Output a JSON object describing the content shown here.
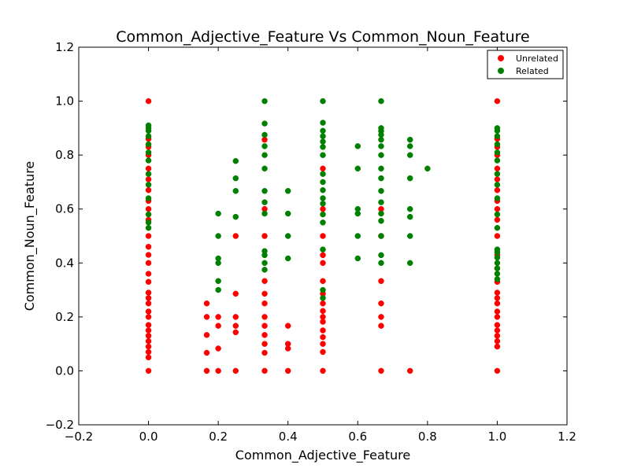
{
  "chart_data": {
    "type": "scatter",
    "title": "Common_Adjective_Feature Vs Common_Noun_Feature",
    "xlabel": "Common_Adjective_Feature",
    "ylabel": "Common_Noun_Feature",
    "xlim": [
      -0.2,
      1.2
    ],
    "ylim": [
      -0.2,
      1.2
    ],
    "xticks": [
      "−0.2",
      "0.0",
      "0.2",
      "0.4",
      "0.6",
      "0.8",
      "1.0",
      "1.2"
    ],
    "yticks": [
      "−0.2",
      "0.0",
      "0.2",
      "0.4",
      "0.6",
      "0.8",
      "1.0",
      "1.2"
    ],
    "legend_position": "top-right",
    "grid": false,
    "series": [
      {
        "name": "Unrelated",
        "color": "#ff0000",
        "points": [
          [
            0,
            0
          ],
          [
            0,
            0.05
          ],
          [
            0,
            0.07
          ],
          [
            0,
            0.09
          ],
          [
            0,
            0.11
          ],
          [
            0,
            0.13
          ],
          [
            0,
            0.15
          ],
          [
            0,
            0.17
          ],
          [
            0,
            0.2
          ],
          [
            0,
            0.22
          ],
          [
            0,
            0.25
          ],
          [
            0,
            0.27
          ],
          [
            0,
            0.29
          ],
          [
            0,
            0.33
          ],
          [
            0,
            0.36
          ],
          [
            0,
            0.4
          ],
          [
            0,
            0.43
          ],
          [
            0,
            0.46
          ],
          [
            0,
            0.5
          ],
          [
            0,
            0.56
          ],
          [
            0,
            0.6
          ],
          [
            0,
            0.63
          ],
          [
            0,
            0.67
          ],
          [
            0,
            0.71
          ],
          [
            0,
            0.75
          ],
          [
            0,
            0.8
          ],
          [
            0,
            0.83
          ],
          [
            0,
            0.86
          ],
          [
            0,
            1.0
          ],
          [
            0.167,
            0
          ],
          [
            0.167,
            0.067
          ],
          [
            0.167,
            0.133
          ],
          [
            0.167,
            0.2
          ],
          [
            0.167,
            0.25
          ],
          [
            0.2,
            0
          ],
          [
            0.2,
            0.083
          ],
          [
            0.2,
            0.167
          ],
          [
            0.2,
            0.2
          ],
          [
            0.25,
            0
          ],
          [
            0.25,
            0.143
          ],
          [
            0.25,
            0.167
          ],
          [
            0.25,
            0.2
          ],
          [
            0.25,
            0.286
          ],
          [
            0.25,
            0.5
          ],
          [
            0.333,
            0
          ],
          [
            0.333,
            0.067
          ],
          [
            0.333,
            0.1
          ],
          [
            0.333,
            0.133
          ],
          [
            0.333,
            0.167
          ],
          [
            0.333,
            0.2
          ],
          [
            0.333,
            0.25
          ],
          [
            0.333,
            0.286
          ],
          [
            0.333,
            0.333
          ],
          [
            0.333,
            0.5
          ],
          [
            0.333,
            0.6
          ],
          [
            0.333,
            0.857
          ],
          [
            0.4,
            0
          ],
          [
            0.4,
            0.083
          ],
          [
            0.4,
            0.1
          ],
          [
            0.4,
            0.167
          ],
          [
            0.5,
            0
          ],
          [
            0.5,
            0.07
          ],
          [
            0.5,
            0.1
          ],
          [
            0.5,
            0.125
          ],
          [
            0.5,
            0.15
          ],
          [
            0.5,
            0.182
          ],
          [
            0.5,
            0.2
          ],
          [
            0.5,
            0.222
          ],
          [
            0.5,
            0.25
          ],
          [
            0.5,
            0.286
          ],
          [
            0.5,
            0.333
          ],
          [
            0.5,
            0.4
          ],
          [
            0.5,
            0.429
          ],
          [
            0.5,
            0.5
          ],
          [
            0.5,
            0.6
          ],
          [
            0.5,
            0.75
          ],
          [
            0.667,
            0
          ],
          [
            0.667,
            0.167
          ],
          [
            0.667,
            0.2
          ],
          [
            0.667,
            0.25
          ],
          [
            0.667,
            0.333
          ],
          [
            0.667,
            0.5
          ],
          [
            0.667,
            0.6
          ],
          [
            0.75,
            0
          ],
          [
            1.0,
            0
          ],
          [
            1.0,
            0.09
          ],
          [
            1.0,
            0.11
          ],
          [
            1.0,
            0.13
          ],
          [
            1.0,
            0.15
          ],
          [
            1.0,
            0.17
          ],
          [
            1.0,
            0.2
          ],
          [
            1.0,
            0.22
          ],
          [
            1.0,
            0.25
          ],
          [
            1.0,
            0.27
          ],
          [
            1.0,
            0.29
          ],
          [
            1.0,
            0.33
          ],
          [
            1.0,
            0.38
          ],
          [
            1.0,
            0.43
          ],
          [
            1.0,
            0.5
          ],
          [
            1.0,
            0.56
          ],
          [
            1.0,
            0.6
          ],
          [
            1.0,
            0.63
          ],
          [
            1.0,
            0.67
          ],
          [
            1.0,
            0.71
          ],
          [
            1.0,
            0.75
          ],
          [
            1.0,
            0.8
          ],
          [
            1.0,
            0.83
          ],
          [
            1.0,
            0.86
          ],
          [
            1.0,
            1.0
          ]
        ]
      },
      {
        "name": "Related",
        "color": "#008000",
        "points": [
          [
            0,
            0.53
          ],
          [
            0,
            0.55
          ],
          [
            0,
            0.58
          ],
          [
            0,
            0.64
          ],
          [
            0,
            0.69
          ],
          [
            0,
            0.73
          ],
          [
            0,
            0.78
          ],
          [
            0,
            0.81
          ],
          [
            0,
            0.84
          ],
          [
            0,
            0.87
          ],
          [
            0,
            0.89
          ],
          [
            0,
            0.9
          ],
          [
            0,
            0.91
          ],
          [
            0.2,
            0.3
          ],
          [
            0.2,
            0.333
          ],
          [
            0.2,
            0.4
          ],
          [
            0.2,
            0.417
          ],
          [
            0.2,
            0.5
          ],
          [
            0.2,
            0.583
          ],
          [
            0.25,
            0.571
          ],
          [
            0.25,
            0.667
          ],
          [
            0.25,
            0.714
          ],
          [
            0.25,
            0.778
          ],
          [
            0.333,
            0.375
          ],
          [
            0.333,
            0.4
          ],
          [
            0.333,
            0.429
          ],
          [
            0.333,
            0.444
          ],
          [
            0.333,
            0.583
          ],
          [
            0.333,
            0.625
          ],
          [
            0.333,
            0.667
          ],
          [
            0.333,
            0.75
          ],
          [
            0.333,
            0.8
          ],
          [
            0.333,
            0.833
          ],
          [
            0.333,
            0.875
          ],
          [
            0.333,
            0.917
          ],
          [
            0.333,
            1.0
          ],
          [
            0.4,
            0.417
          ],
          [
            0.4,
            0.5
          ],
          [
            0.4,
            0.583
          ],
          [
            0.4,
            0.667
          ],
          [
            0.5,
            0.27
          ],
          [
            0.5,
            0.3
          ],
          [
            0.5,
            0.45
          ],
          [
            0.5,
            0.55
          ],
          [
            0.5,
            0.58
          ],
          [
            0.5,
            0.62
          ],
          [
            0.5,
            0.64
          ],
          [
            0.5,
            0.67
          ],
          [
            0.5,
            0.7
          ],
          [
            0.5,
            0.73
          ],
          [
            0.5,
            0.8
          ],
          [
            0.5,
            0.83
          ],
          [
            0.5,
            0.85
          ],
          [
            0.5,
            0.87
          ],
          [
            0.5,
            0.89
          ],
          [
            0.5,
            0.92
          ],
          [
            0.5,
            1.0
          ],
          [
            0.6,
            0.417
          ],
          [
            0.6,
            0.5
          ],
          [
            0.6,
            0.583
          ],
          [
            0.6,
            0.6
          ],
          [
            0.6,
            0.75
          ],
          [
            0.6,
            0.833
          ],
          [
            0.667,
            0.4
          ],
          [
            0.667,
            0.429
          ],
          [
            0.667,
            0.5
          ],
          [
            0.667,
            0.556
          ],
          [
            0.667,
            0.583
          ],
          [
            0.667,
            0.625
          ],
          [
            0.667,
            0.667
          ],
          [
            0.667,
            0.714
          ],
          [
            0.667,
            0.75
          ],
          [
            0.667,
            0.8
          ],
          [
            0.667,
            0.833
          ],
          [
            0.667,
            0.857
          ],
          [
            0.667,
            0.875
          ],
          [
            0.667,
            0.889
          ],
          [
            0.667,
            0.9
          ],
          [
            0.667,
            1.0
          ],
          [
            0.75,
            0.4
          ],
          [
            0.75,
            0.5
          ],
          [
            0.75,
            0.571
          ],
          [
            0.75,
            0.6
          ],
          [
            0.75,
            0.714
          ],
          [
            0.75,
            0.8
          ],
          [
            0.75,
            0.833
          ],
          [
            0.75,
            0.857
          ],
          [
            0.8,
            0.75
          ],
          [
            1.0,
            0.34
          ],
          [
            1.0,
            0.36
          ],
          [
            1.0,
            0.38
          ],
          [
            1.0,
            0.4
          ],
          [
            1.0,
            0.42
          ],
          [
            1.0,
            0.44
          ],
          [
            1.0,
            0.45
          ],
          [
            1.0,
            0.53
          ],
          [
            1.0,
            0.58
          ],
          [
            1.0,
            0.64
          ],
          [
            1.0,
            0.69
          ],
          [
            1.0,
            0.73
          ],
          [
            1.0,
            0.78
          ],
          [
            1.0,
            0.81
          ],
          [
            1.0,
            0.84
          ],
          [
            1.0,
            0.87
          ],
          [
            1.0,
            0.89
          ],
          [
            1.0,
            0.9
          ]
        ]
      }
    ]
  }
}
